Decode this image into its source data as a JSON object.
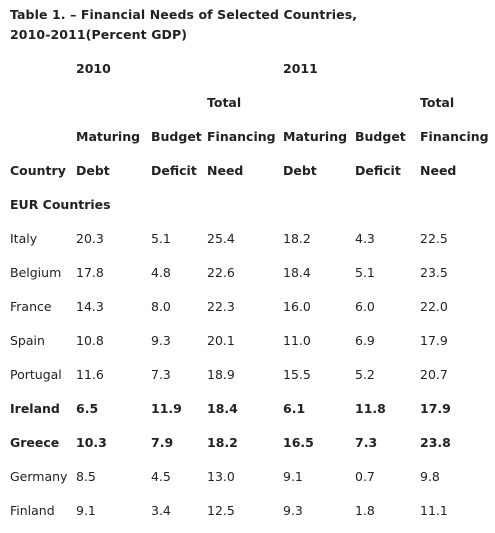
{
  "title": "Table 1. – Financial Needs of Selected Countries,\n2010-2011(Percent GDP)",
  "year_headers": [
    "2010",
    "2011"
  ],
  "header_row_total": [
    "Total",
    "Total"
  ],
  "header_row_mid": [
    "Maturing",
    "Budget",
    "Financing",
    "Maturing",
    "Budget",
    "Financing"
  ],
  "header_row_bottom": [
    "Country",
    "Debt",
    "Deficit",
    "Need",
    "Debt",
    "Deficit",
    "Need"
  ],
  "section_label": "EUR Countries",
  "rows": [
    {
      "country": "Italy",
      "values": [
        "20.3",
        "5.1",
        "25.4",
        "18.2",
        "4.3",
        "22.5"
      ],
      "bold": false
    },
    {
      "country": "Belgium",
      "values": [
        "17.8",
        "4.8",
        "22.6",
        "18.4",
        "5.1",
        "23.5"
      ],
      "bold": false
    },
    {
      "country": "France",
      "values": [
        "14.3",
        "8.0",
        "22.3",
        "16.0",
        "6.0",
        "22.0"
      ],
      "bold": false
    },
    {
      "country": "Spain",
      "values": [
        "10.8",
        "9.3",
        "20.1",
        "11.0",
        "6.9",
        "17.9"
      ],
      "bold": false
    },
    {
      "country": "Portugal",
      "values": [
        "11.6",
        "7.3",
        "18.9",
        "15.5",
        "5.2",
        "20.7"
      ],
      "bold": false
    },
    {
      "country": "Ireland",
      "values": [
        "6.5",
        "11.9",
        "18.4",
        "6.1",
        "11.8",
        "17.9"
      ],
      "bold": true
    },
    {
      "country": "Greece",
      "values": [
        "10.3",
        "7.9",
        "18.2",
        "16.5",
        "7.3",
        "23.8"
      ],
      "bold": true
    },
    {
      "country": "Germany",
      "values": [
        "8.5",
        "4.5",
        "13.0",
        "9.1",
        "0.7",
        "9.8"
      ],
      "bold": false
    },
    {
      "country": "Finland",
      "values": [
        "9.1",
        "3.4",
        "12.5",
        "9.3",
        "1.8",
        "11.1"
      ],
      "bold": false
    }
  ]
}
